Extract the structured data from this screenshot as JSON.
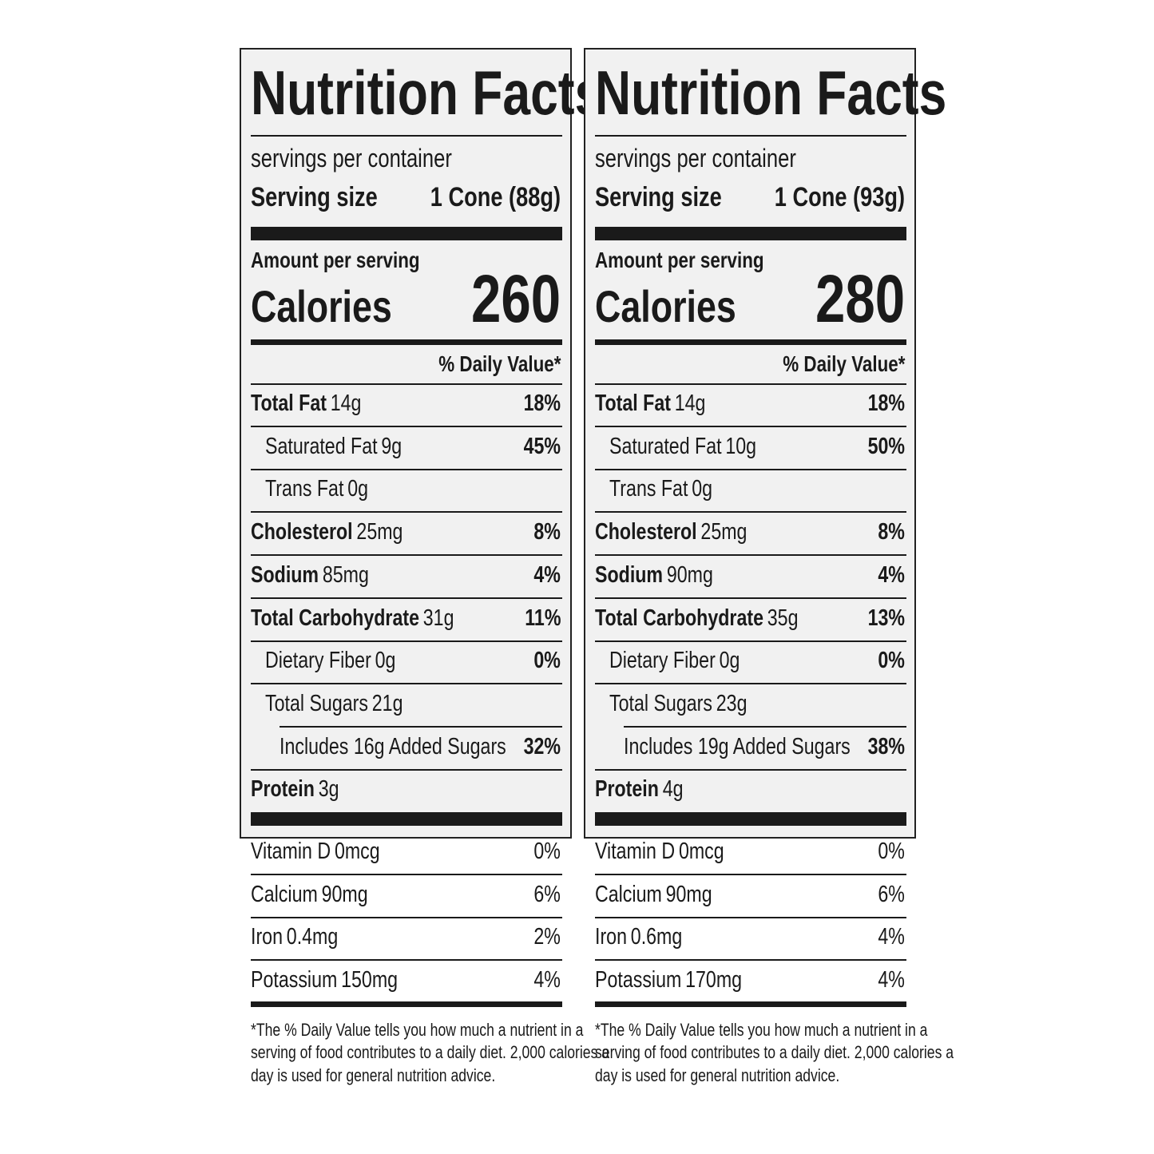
{
  "labels": [
    {
      "title": "Nutrition Facts",
      "servings": "servings per container",
      "serving_size_label": "Serving size",
      "serving_size": "1 Cone (88g)",
      "amount_per_serving": "Amount per serving",
      "calories_label": "Calories",
      "calories": "260",
      "dv_header": "% Daily Value*",
      "nutrients": [
        {
          "name": "Total Fat",
          "amount": "14g",
          "dv": "18%"
        },
        {
          "name": "Saturated Fat",
          "amount": "9g",
          "dv": "45%"
        },
        {
          "name": "Trans Fat",
          "amount": "0g"
        },
        {
          "name": "Cholesterol",
          "amount": "25mg",
          "dv": "8%"
        },
        {
          "name": "Sodium",
          "amount": "85mg",
          "dv": "4%"
        },
        {
          "name": "Total Carbohydrate",
          "amount": "31g",
          "dv": "11%"
        },
        {
          "name": "Dietary Fiber",
          "amount": "0g",
          "dv": "0%"
        },
        {
          "name": "Total Sugars",
          "amount": "21g"
        },
        {
          "name": "Includes 16g Added Sugars",
          "dv": "32%"
        },
        {
          "name": "Protein",
          "amount": "3g"
        }
      ],
      "vitamins": [
        {
          "name": "Vitamin D",
          "amount": "0mcg",
          "dv": "0%"
        },
        {
          "name": "Calcium",
          "amount": "90mg",
          "dv": "6%"
        },
        {
          "name": "Iron",
          "amount": "0.4mg",
          "dv": "2%"
        },
        {
          "name": "Potassium",
          "amount": "150mg",
          "dv": "4%"
        }
      ],
      "footnote": [
        "*The % Daily Value tells you how much a nutrient in a",
        "serving of food contributes to a daily diet. 2,000 calories a",
        "day is used for general nutrition advice."
      ]
    },
    {
      "title": "Nutrition Facts",
      "servings": "servings per container",
      "serving_size_label": "Serving size",
      "serving_size": "1 Cone (93g)",
      "amount_per_serving": "Amount per serving",
      "calories_label": "Calories",
      "calories": "280",
      "dv_header": "% Daily Value*",
      "nutrients": [
        {
          "name": "Total Fat",
          "amount": "14g",
          "dv": "18%"
        },
        {
          "name": "Saturated Fat",
          "amount": "10g",
          "dv": "50%"
        },
        {
          "name": "Trans Fat",
          "amount": "0g"
        },
        {
          "name": "Cholesterol",
          "amount": "25mg",
          "dv": "8%"
        },
        {
          "name": "Sodium",
          "amount": "90mg",
          "dv": "4%"
        },
        {
          "name": "Total Carbohydrate",
          "amount": "35g",
          "dv": "13%"
        },
        {
          "name": "Dietary Fiber",
          "amount": "0g",
          "dv": "0%"
        },
        {
          "name": "Total Sugars",
          "amount": "23g"
        },
        {
          "name": "Includes 19g Added Sugars",
          "dv": "38%"
        },
        {
          "name": "Protein",
          "amount": "4g"
        }
      ],
      "vitamins": [
        {
          "name": "Vitamin D",
          "amount": "0mcg",
          "dv": "0%"
        },
        {
          "name": "Calcium",
          "amount": "90mg",
          "dv": "6%"
        },
        {
          "name": "Iron",
          "amount": "0.6mg",
          "dv": "4%"
        },
        {
          "name": "Potassium",
          "amount": "170mg",
          "dv": "4%"
        }
      ],
      "footnote": [
        "*The % Daily Value tells you how much a nutrient in a",
        "serving of food contributes to a daily diet. 2,000 calories a",
        "day is used for general nutrition advice."
      ]
    }
  ]
}
